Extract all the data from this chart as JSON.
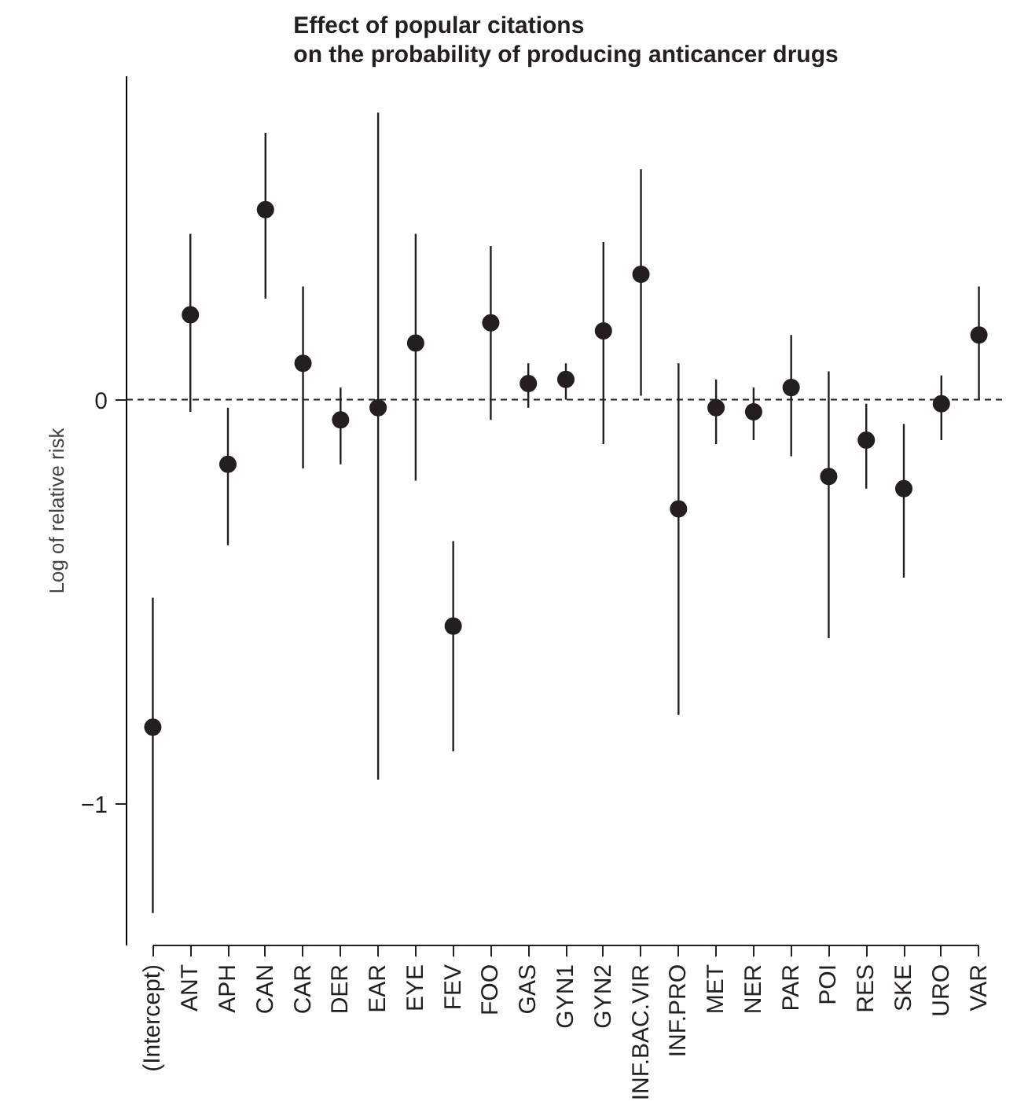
{
  "chart_data": {
    "type": "scatter",
    "title": "Effect of popular citations\non the probability of producing anticancer drugs",
    "ylabel": "Log of relative risk",
    "categories": [
      "(Intercept)",
      "ANT",
      "APH",
      "CAN",
      "CAR",
      "DER",
      "EAR",
      "EYE",
      "FEV",
      "FOO",
      "GAS",
      "GYN1",
      "GYN2",
      "INF.BAC.VIR",
      "INF.PRO",
      "MET",
      "NER",
      "PAR",
      "POI",
      "RES",
      "SKE",
      "URO",
      "VAR"
    ],
    "values": [
      -0.81,
      0.21,
      -0.16,
      0.47,
      0.09,
      -0.05,
      -0.02,
      0.14,
      -0.56,
      0.19,
      0.04,
      0.05,
      0.17,
      0.31,
      -0.27,
      -0.02,
      -0.03,
      0.03,
      -0.19,
      -0.1,
      -0.22,
      -0.01,
      0.16
    ],
    "errors": [
      [
        -1.27,
        -0.49
      ],
      [
        -0.03,
        0.41
      ],
      [
        -0.36,
        -0.02
      ],
      [
        0.25,
        0.66
      ],
      [
        -0.17,
        0.28
      ],
      [
        -0.16,
        0.03
      ],
      [
        -0.94,
        0.71
      ],
      [
        -0.2,
        0.41
      ],
      [
        -0.87,
        -0.35
      ],
      [
        -0.05,
        0.38
      ],
      [
        -0.02,
        0.09
      ],
      [
        0.0,
        0.09
      ],
      [
        -0.11,
        0.39
      ],
      [
        0.01,
        0.57
      ],
      [
        -0.78,
        0.09
      ],
      [
        -0.11,
        0.05
      ],
      [
        -0.1,
        0.03
      ],
      [
        -0.14,
        0.16
      ],
      [
        -0.59,
        0.07
      ],
      [
        -0.22,
        -0.01
      ],
      [
        -0.44,
        -0.06
      ],
      [
        -0.1,
        0.06
      ],
      [
        0.0,
        0.28
      ]
    ],
    "color": "#231f20",
    "marker": "circle",
    "ylim": [
      -1.35,
      0.8
    ],
    "yticks": [
      -1,
      0
    ],
    "ref_lines": [
      {
        "axis": "y",
        "value": 0,
        "line_style": "dashed",
        "color": "#231f20"
      }
    ],
    "grid": false
  }
}
